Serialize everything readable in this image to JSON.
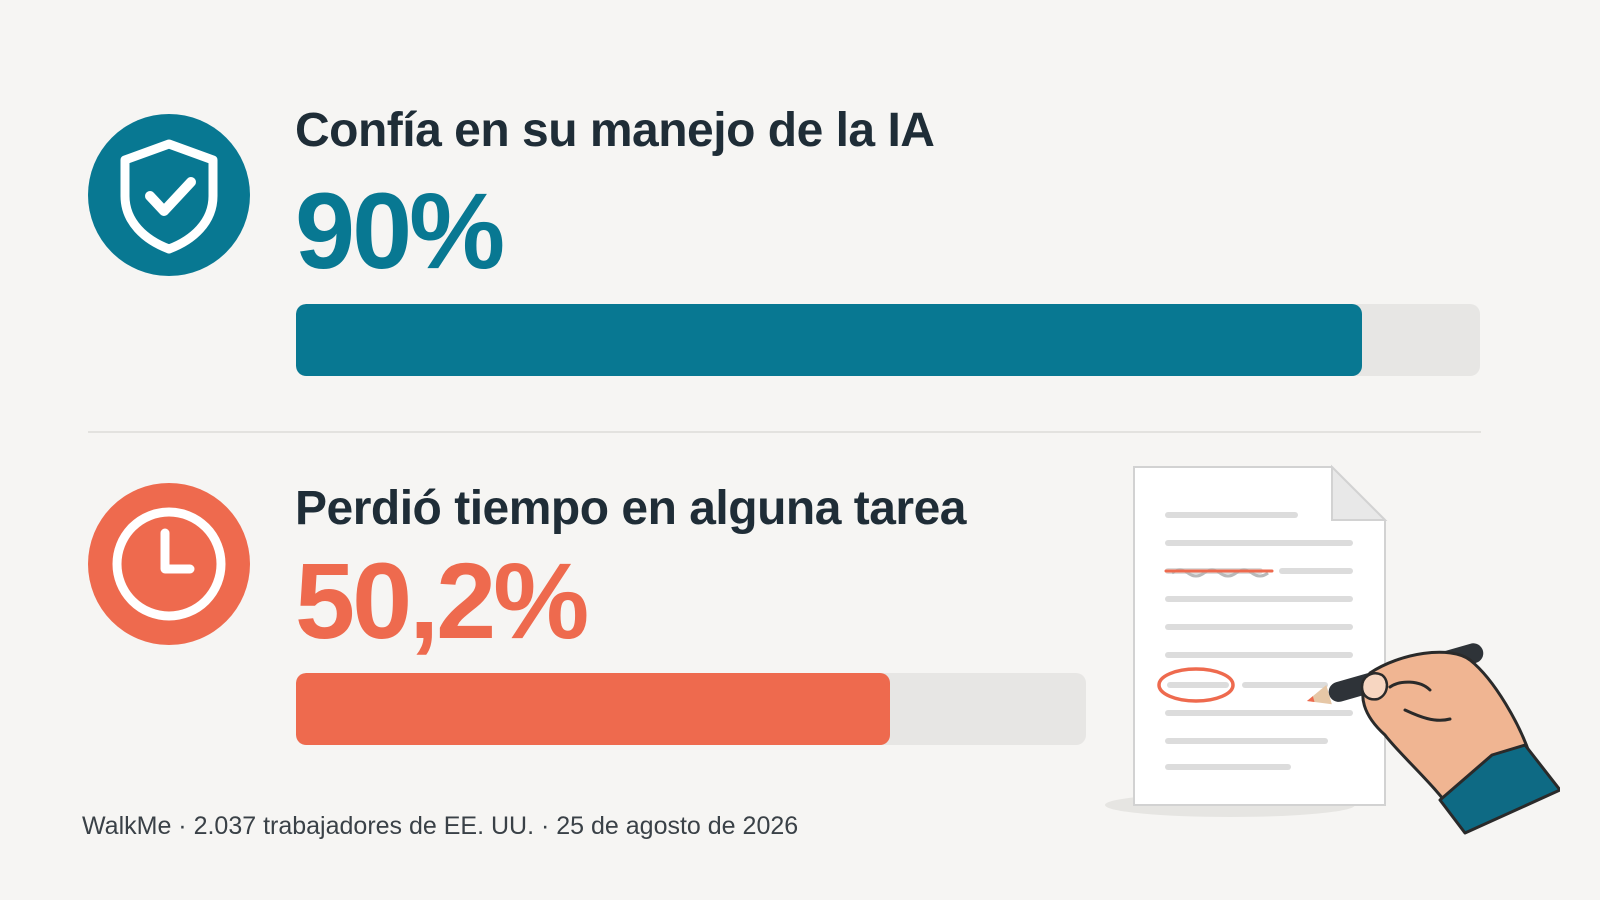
{
  "chart_data": {
    "type": "bar",
    "orientation": "horizontal",
    "xlim": [
      0,
      100
    ],
    "bars": [
      {
        "label": "Confía en su manejo de la IA",
        "value": 90,
        "value_text": "90%",
        "color": "#087892",
        "icon": "shield-check-icon"
      },
      {
        "label": "Perdió tiempo en alguna tarea",
        "value": 50.2,
        "value_text": "50,2%",
        "color": "#ee6a4e",
        "icon": "clock-icon"
      }
    ],
    "source": "WalkMe · 2.037 trabajadores de EE. UU. · 25 de agosto de 2026"
  },
  "colors": {
    "background": "#f6f5f3",
    "track": "#e7e6e4",
    "text": "#1f2d37"
  },
  "illustration": "hand-editing-document"
}
